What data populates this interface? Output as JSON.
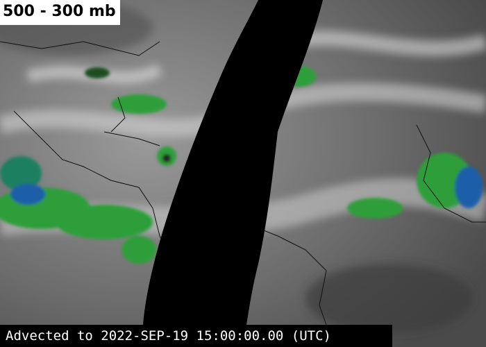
{
  "label": "500 - 300 mb",
  "timestamp": "Advected to 2022-SEP-19 15:00:00.00 (UTC)"
}
